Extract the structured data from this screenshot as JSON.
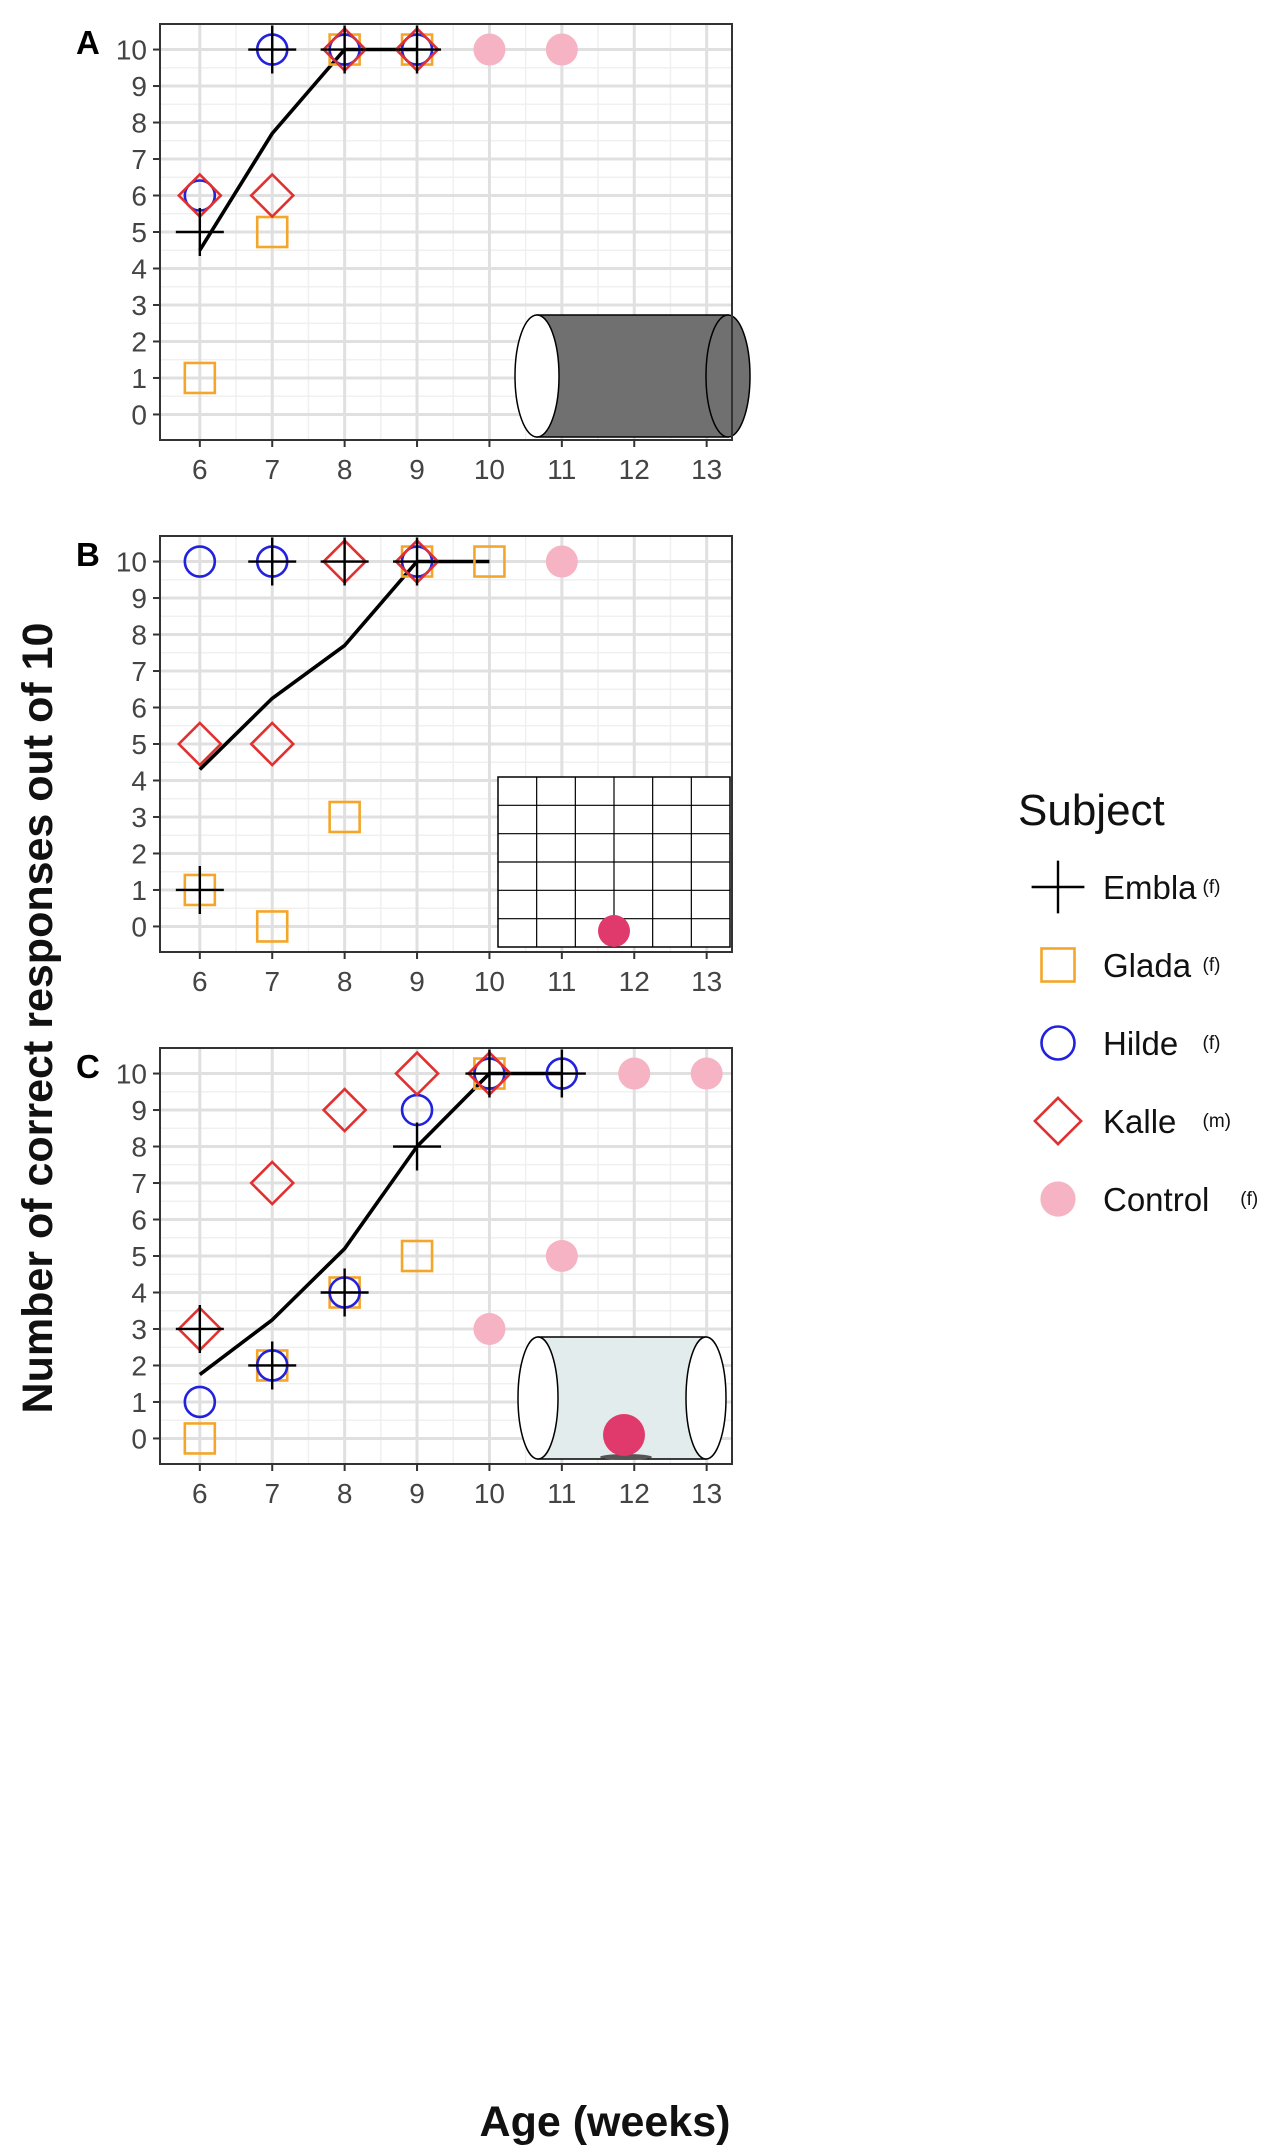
{
  "figure": {
    "ylabel": "Number of correct responses out of 10",
    "xlabel": "Age (weeks)"
  },
  "legend": {
    "title": "Subject",
    "entries": [
      {
        "name": "Embla",
        "sex": "(f)",
        "marker": "plus",
        "color": "#000000"
      },
      {
        "name": "Glada",
        "sex": "(f)",
        "marker": "square",
        "color": "#F4A62A"
      },
      {
        "name": "Hilde",
        "sex": "(f)",
        "marker": "circle",
        "color": "#2222DD"
      },
      {
        "name": "Kalle",
        "sex": "(m)",
        "marker": "diamond",
        "color": "#E03030"
      },
      {
        "name": "Control",
        "sex": "(f)",
        "marker": "dot",
        "color": "#F6B3C3"
      }
    ]
  },
  "chart_data": [
    {
      "panel": "A",
      "type": "scatter",
      "xlabel": "Age (weeks)",
      "ylabel": "Number of correct responses out of 10",
      "xlim": [
        5.45,
        13.35
      ],
      "ylim": [
        -0.7,
        10.7
      ],
      "x_ticks": [
        6,
        7,
        8,
        9,
        10,
        11,
        12,
        13
      ],
      "y_ticks": [
        0,
        1,
        2,
        3,
        4,
        5,
        6,
        7,
        8,
        9,
        10
      ],
      "grid": true,
      "inset": "opaque-tube",
      "series": [
        {
          "name": "Embla",
          "points": [
            [
              6,
              5
            ],
            [
              7,
              10
            ],
            [
              8,
              10
            ],
            [
              9,
              10
            ]
          ]
        },
        {
          "name": "Glada",
          "points": [
            [
              6,
              1
            ],
            [
              7,
              5
            ],
            [
              8,
              10
            ],
            [
              9,
              10
            ]
          ]
        },
        {
          "name": "Hilde",
          "points": [
            [
              6,
              6
            ],
            [
              7,
              10
            ],
            [
              8,
              10
            ],
            [
              9,
              10
            ]
          ]
        },
        {
          "name": "Kalle",
          "points": [
            [
              6,
              6
            ],
            [
              7,
              6
            ],
            [
              8,
              10
            ],
            [
              9,
              10
            ]
          ]
        },
        {
          "name": "Control",
          "points": [
            [
              10,
              10
            ],
            [
              11,
              10
            ]
          ]
        }
      ],
      "trend": [
        [
          6,
          4.5
        ],
        [
          7,
          7.7
        ],
        [
          8,
          10
        ],
        [
          9,
          10
        ]
      ]
    },
    {
      "panel": "B",
      "type": "scatter",
      "xlabel": "Age (weeks)",
      "ylabel": "Number of correct responses out of 10",
      "xlim": [
        5.45,
        13.35
      ],
      "ylim": [
        -0.7,
        10.7
      ],
      "x_ticks": [
        6,
        7,
        8,
        9,
        10,
        11,
        12,
        13
      ],
      "y_ticks": [
        0,
        1,
        2,
        3,
        4,
        5,
        6,
        7,
        8,
        9,
        10
      ],
      "grid": true,
      "inset": "grid-with-ball",
      "series": [
        {
          "name": "Embla",
          "points": [
            [
              6,
              1
            ],
            [
              7,
              10
            ],
            [
              8,
              10
            ],
            [
              9,
              10
            ]
          ]
        },
        {
          "name": "Glada",
          "points": [
            [
              6,
              1
            ],
            [
              7,
              0
            ],
            [
              8,
              3
            ],
            [
              9,
              10
            ],
            [
              10,
              10
            ]
          ]
        },
        {
          "name": "Hilde",
          "points": [
            [
              6,
              10
            ],
            [
              7,
              10
            ],
            [
              9,
              10
            ]
          ]
        },
        {
          "name": "Kalle",
          "points": [
            [
              6,
              5
            ],
            [
              7,
              5
            ],
            [
              8,
              10
            ],
            [
              9,
              10
            ]
          ]
        },
        {
          "name": "Control",
          "points": [
            [
              11,
              10
            ]
          ]
        }
      ],
      "trend": [
        [
          6,
          4.3
        ],
        [
          7,
          6.25
        ],
        [
          8,
          7.7
        ],
        [
          9,
          10
        ],
        [
          10,
          10
        ]
      ]
    },
    {
      "panel": "C",
      "type": "scatter",
      "xlabel": "Age (weeks)",
      "ylabel": "Number of correct responses out of 10",
      "xlim": [
        5.45,
        13.35
      ],
      "ylim": [
        -0.7,
        10.7
      ],
      "x_ticks": [
        6,
        7,
        8,
        9,
        10,
        11,
        12,
        13
      ],
      "y_ticks": [
        0,
        1,
        2,
        3,
        4,
        5,
        6,
        7,
        8,
        9,
        10
      ],
      "grid": true,
      "inset": "transparent-tube-with-ball",
      "series": [
        {
          "name": "Embla",
          "points": [
            [
              6,
              3
            ],
            [
              7,
              2
            ],
            [
              8,
              4
            ],
            [
              9,
              8
            ],
            [
              10,
              10
            ],
            [
              11,
              10
            ]
          ]
        },
        {
          "name": "Glada",
          "points": [
            [
              6,
              0
            ],
            [
              7,
              2
            ],
            [
              8,
              4
            ],
            [
              9,
              5
            ],
            [
              10,
              10
            ]
          ]
        },
        {
          "name": "Hilde",
          "points": [
            [
              6,
              1
            ],
            [
              7,
              2
            ],
            [
              8,
              4
            ],
            [
              9,
              9
            ],
            [
              10,
              10
            ],
            [
              11,
              10
            ]
          ]
        },
        {
          "name": "Kalle",
          "points": [
            [
              6,
              3
            ],
            [
              7,
              7
            ],
            [
              8,
              9
            ],
            [
              9,
              10
            ],
            [
              10,
              10
            ]
          ]
        },
        {
          "name": "Control",
          "points": [
            [
              10,
              3
            ],
            [
              11,
              5
            ],
            [
              12,
              10
            ],
            [
              13,
              10
            ]
          ]
        }
      ],
      "trend": [
        [
          6,
          1.75
        ],
        [
          7,
          3.25
        ],
        [
          8,
          5.2
        ],
        [
          9,
          8
        ],
        [
          10,
          10
        ],
        [
          11,
          10
        ]
      ]
    }
  ]
}
